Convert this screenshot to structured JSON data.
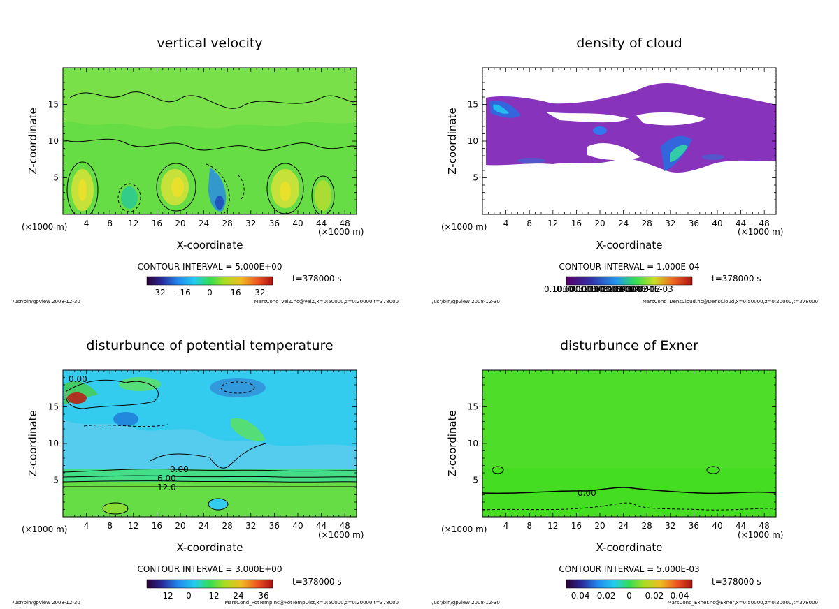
{
  "meta_footer_left": "/usr/bin/gpview  2008-12-30",
  "panels": [
    {
      "id": "velz",
      "title": "vertical velocity",
      "xlabel": "X-coordinate",
      "ylabel": "Z-coordinate",
      "xunit_left": "(×1000 m)",
      "xunit_right": "(×1000 m)",
      "contour_interval": "CONTOUR INTERVAL = 5.000E+00",
      "time_label": "t=378000 s",
      "footer_right": "MarsCond_VelZ.nc@VelZ,x=0:50000,z=0:20000,t=378000",
      "colorbar_labels": [
        "-32",
        "-16",
        "0",
        "16",
        "32"
      ],
      "field_color": "#66dd44",
      "contour_labels": []
    },
    {
      "id": "cloud",
      "title": "density of cloud",
      "xlabel": "X-coordinate",
      "ylabel": "Z-coordinate",
      "xunit_left": "(×1000 m)",
      "xunit_right": "(×1000 m)",
      "contour_interval": "CONTOUR INTERVAL = 1.000E-04",
      "time_label": "t=378000 s",
      "footer_right": "MarsCond_DensCloud.nc@DensCloud,x=0:50000,z=0:20000,t=378000",
      "colorbar_labels": [
        "0.10000E-03",
        "0.60000E-03",
        "0.11000E-02",
        "0.16000E-02",
        "0.21000E-02",
        "0.26000E-02",
        "0.30000E-03"
      ],
      "field_color": "#ffffff",
      "contour_labels": []
    },
    {
      "id": "pott",
      "title": "disturbunce of potential temperature",
      "xlabel": "X-coordinate",
      "ylabel": "Z-coordinate",
      "xunit_left": "(×1000 m)",
      "xunit_right": "(×1000 m)",
      "contour_interval": "CONTOUR INTERVAL = 3.000E+00",
      "time_label": "t=378000 s",
      "footer_right": "MarsCond_PotTemp.nc@PotTempDist,x=0:50000,z=0:20000,t=378000",
      "colorbar_labels": [
        "-12",
        "0",
        "12",
        "24",
        "36"
      ],
      "field_color": "#33ccee",
      "contour_labels": [
        "0.00",
        "0.00",
        "6.00",
        "12.0"
      ]
    },
    {
      "id": "exner",
      "title": "disturbunce of Exner",
      "xlabel": "X-coordinate",
      "ylabel": "Z-coordinate",
      "xunit_left": "(×1000 m)",
      "xunit_right": "(×1000 m)",
      "contour_interval": "CONTOUR INTERVAL = 5.000E-03",
      "time_label": "t=378000 s",
      "footer_right": "MarsCond_Exner.nc@Exner,x=0:50000,z=0:20000,t=378000",
      "colorbar_labels": [
        "-0.04",
        "-0.02",
        "0",
        "0.02",
        "0.04"
      ],
      "field_color": "#44dd22",
      "contour_labels": [
        "0.00"
      ]
    }
  ],
  "chart_data": [
    {
      "type": "heatmap",
      "title": "vertical velocity",
      "xlabel": "X-coordinate",
      "ylabel": "Z-coordinate",
      "xunit": "(×1000 m)",
      "xlim": [
        0,
        50
      ],
      "ylim": [
        0,
        20
      ],
      "xticks": [
        4,
        8,
        12,
        16,
        20,
        24,
        28,
        32,
        36,
        40,
        44,
        48
      ],
      "yticks": [
        5,
        10,
        15
      ],
      "colorbar_ticks": [
        -32,
        -16,
        0,
        16,
        32
      ],
      "contour_interval": 5.0,
      "updraft_centers_x": [
        3,
        20,
        38,
        45
      ],
      "downdraft_centers_x": [
        11,
        26
      ]
    },
    {
      "type": "heatmap",
      "title": "density of cloud",
      "xlabel": "X-coordinate",
      "ylabel": "Z-coordinate",
      "xunit": "(×1000 m)",
      "xlim": [
        0,
        50
      ],
      "ylim": [
        0,
        20
      ],
      "xticks": [
        4,
        8,
        12,
        16,
        20,
        24,
        28,
        32,
        36,
        40,
        44,
        48
      ],
      "yticks": [
        5,
        10,
        15
      ],
      "contour_interval": 0.0001,
      "cloud_layer_z": [
        6.5,
        18
      ]
    },
    {
      "type": "heatmap",
      "title": "disturbunce of potential temperature",
      "xlabel": "X-coordinate",
      "ylabel": "Z-coordinate",
      "xunit": "(×1000 m)",
      "xlim": [
        0,
        50
      ],
      "ylim": [
        0,
        20
      ],
      "xticks": [
        4,
        8,
        12,
        16,
        20,
        24,
        28,
        32,
        36,
        40,
        44,
        48
      ],
      "yticks": [
        5,
        10,
        15
      ],
      "colorbar_ticks": [
        -12,
        0,
        12,
        24,
        36
      ],
      "contour_interval": 3.0,
      "contour_levels_labeled": [
        0.0,
        0.0,
        6.0,
        12.0
      ]
    },
    {
      "type": "heatmap",
      "title": "disturbunce of Exner",
      "xlabel": "X-coordinate",
      "ylabel": "Z-coordinate",
      "xunit": "(×1000 m)",
      "xlim": [
        0,
        50
      ],
      "ylim": [
        0,
        20
      ],
      "xticks": [
        4,
        8,
        12,
        16,
        20,
        24,
        28,
        32,
        36,
        40,
        44,
        48
      ],
      "yticks": [
        5,
        10,
        15
      ],
      "colorbar_ticks": [
        -0.04,
        -0.02,
        0,
        0.02,
        0.04
      ],
      "contour_interval": 0.005,
      "contour_levels_labeled": [
        0.0
      ]
    }
  ]
}
